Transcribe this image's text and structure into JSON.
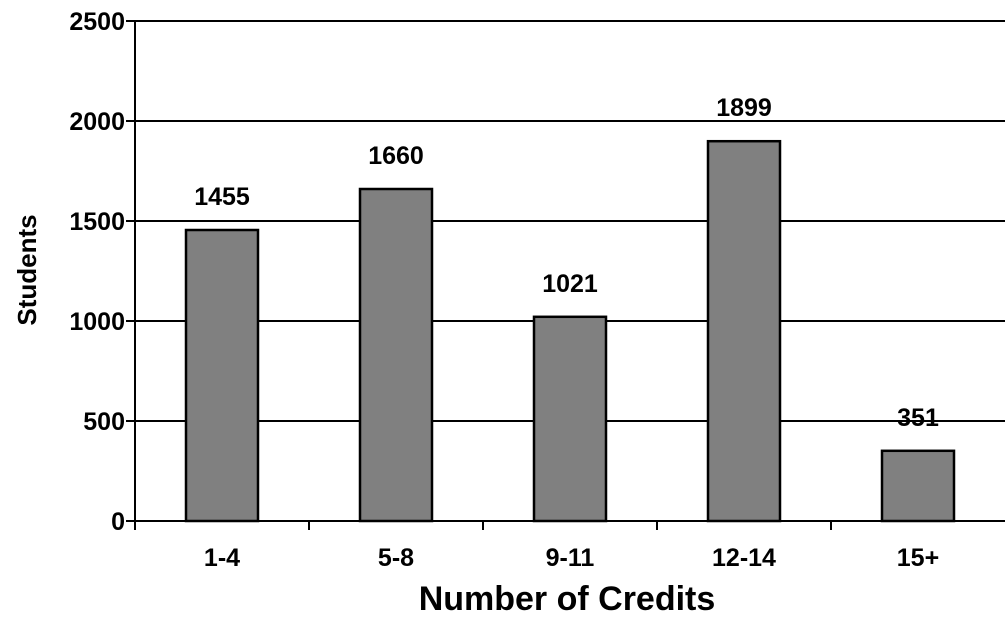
{
  "chart_data": {
    "type": "bar",
    "title": "",
    "xlabel": "Number of Credits",
    "ylabel": "Students",
    "categories": [
      "1-4",
      "5-8",
      "9-11",
      "12-14",
      "15+"
    ],
    "values": [
      1455,
      1660,
      1021,
      1899,
      351
    ],
    "ylim": [
      0,
      2500
    ],
    "yticks": [
      0,
      500,
      1000,
      1500,
      2000,
      2500
    ],
    "grid": true,
    "legend": "none",
    "colors": {
      "bar_fill": "#808080",
      "bar_stroke": "#000000",
      "axis": "#000000",
      "gridline": "#000000"
    }
  }
}
